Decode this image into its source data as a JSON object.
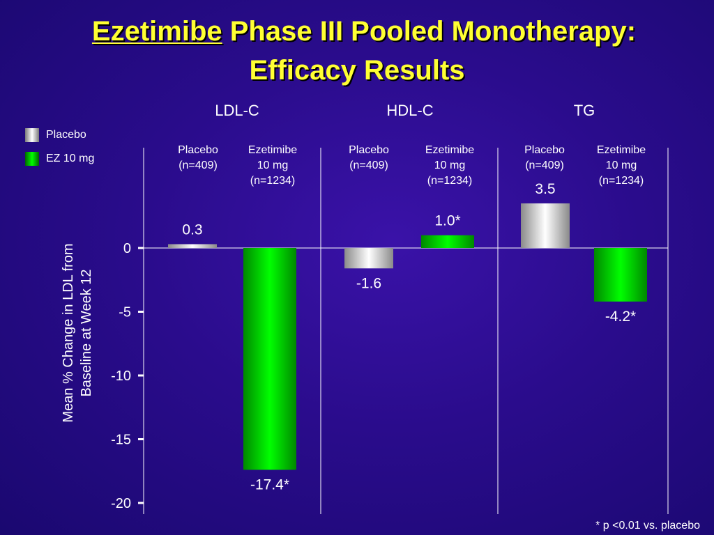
{
  "title_line1_part1": "Ezetimibe",
  "title_line1_part2": " Phase III Pooled Monotherapy:",
  "title_line2": "Efficacy Results",
  "groups": [
    "LDL-C",
    "HDL-C",
    "TG"
  ],
  "column_labels": [
    {
      "l1": "Placebo",
      "l2": "(n=409)",
      "l3": ""
    },
    {
      "l1": "Ezetimibe",
      "l2": "10 mg",
      "l3": "(n=1234)"
    },
    {
      "l1": "Placebo",
      "l2": "(n=409)",
      "l3": ""
    },
    {
      "l1": "Ezetimibe",
      "l2": "10 mg",
      "l3": "(n=1234)"
    },
    {
      "l1": "Placebo",
      "l2": "(n=409)",
      "l3": ""
    },
    {
      "l1": "Ezetimibe",
      "l2": "10 mg",
      "l3": "(n=1234)"
    }
  ],
  "legend": [
    {
      "label": "Placebo",
      "color": "#c8c8c8"
    },
    {
      "label": "EZ 10 mg",
      "color": "#00cc00"
    }
  ],
  "ylabel_line1": "Mean % Change in LDL from",
  "ylabel_line2": "Baseline at Week 12",
  "footnote": "* p <0.01 vs. placebo",
  "colors": {
    "title": "#ffff33",
    "placebo": "#c8c8c8",
    "ezetimibe": "#00cc00",
    "axis": "#ffffff"
  },
  "chart_data": {
    "type": "bar",
    "categories": [
      "LDL-C",
      "HDL-C",
      "TG"
    ],
    "series": [
      {
        "name": "Placebo",
        "values": [
          0.3,
          -1.6,
          3.5
        ],
        "labels": [
          "0.3",
          "-1.6",
          "3.5"
        ]
      },
      {
        "name": "EZ 10 mg",
        "values": [
          -17.4,
          1.0,
          -4.2
        ],
        "labels": [
          "-17.4*",
          "1.0*",
          "-4.2*"
        ]
      }
    ],
    "yticks": [
      0,
      -5,
      -10,
      -15,
      -20
    ],
    "ylim": [
      -20,
      3.5
    ],
    "ylabel": "Mean % Change in LDL from Baseline at Week 12",
    "legend_position": "top-left",
    "grid": false
  }
}
